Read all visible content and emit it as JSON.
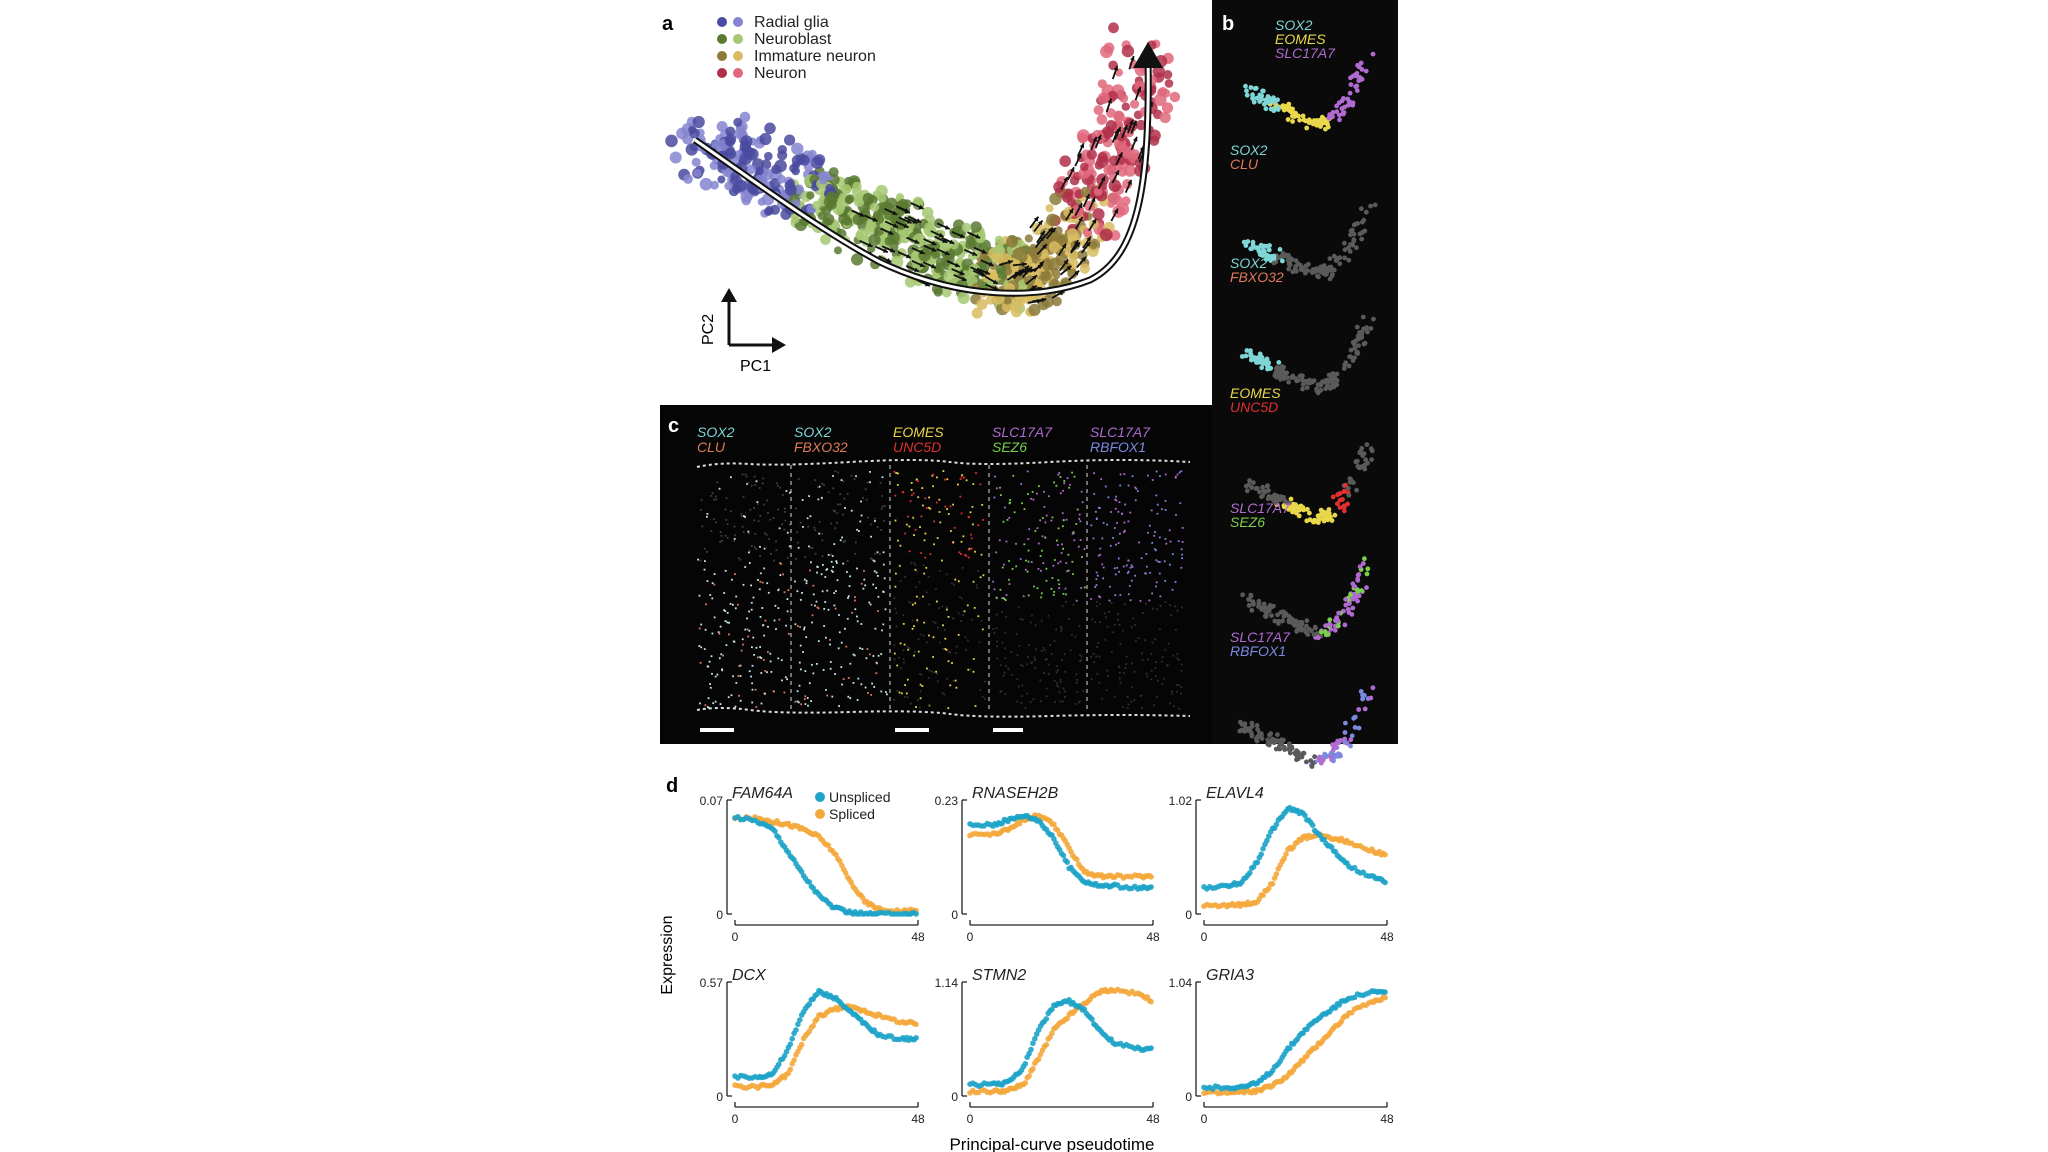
{
  "panel_a": {
    "letter": "a",
    "legend": [
      {
        "label": "Radial glia",
        "colors": [
          "#4a4aa0",
          "#8585d0"
        ]
      },
      {
        "label": "Neuroblast",
        "colors": [
          "#5a7a32",
          "#a6c872"
        ]
      },
      {
        "label": "Immature neuron",
        "colors": [
          "#8c7a3a",
          "#d8bc62"
        ]
      },
      {
        "label": "Neuron",
        "colors": [
          "#b0304a",
          "#e0687c"
        ]
      }
    ],
    "axis_x": "PC1",
    "axis_y": "PC2"
  },
  "panel_b": {
    "letter": "b",
    "groups": [
      {
        "genes": [
          {
            "name": "SOX2",
            "color": "#7fd6d6"
          },
          {
            "name": "EOMES",
            "color": "#e8d84a"
          },
          {
            "name": "SLC17A7",
            "color": "#b06ad0"
          }
        ]
      },
      {
        "genes": [
          {
            "name": "SOX2",
            "color": "#7fd6d6"
          },
          {
            "name": "CLU",
            "color": "#e07a5a"
          }
        ]
      },
      {
        "genes": [
          {
            "name": "SOX2",
            "color": "#7fd6d6"
          },
          {
            "name": "FBXO32",
            "color": "#e07a5a"
          }
        ]
      },
      {
        "genes": [
          {
            "name": "EOMES",
            "color": "#e8d84a"
          },
          {
            "name": "UNC5D",
            "color": "#e03030"
          }
        ]
      },
      {
        "genes": [
          {
            "name": "SLC17A7",
            "color": "#b06ad0"
          },
          {
            "name": "SEZ6",
            "color": "#7ad04a"
          }
        ]
      },
      {
        "genes": [
          {
            "name": "SLC17A7",
            "color": "#b06ad0"
          },
          {
            "name": "RBFOX1",
            "color": "#7a8ae0"
          }
        ]
      }
    ]
  },
  "panel_c": {
    "letter": "c",
    "columns": [
      {
        "genes": [
          {
            "name": "SOX2",
            "color": "#7fd6d6"
          },
          {
            "name": "CLU",
            "color": "#e07a5a"
          }
        ]
      },
      {
        "genes": [
          {
            "name": "SOX2",
            "color": "#7fd6d6"
          },
          {
            "name": "FBXO32",
            "color": "#e07a5a"
          }
        ]
      },
      {
        "genes": [
          {
            "name": "EOMES",
            "color": "#e8d84a"
          },
          {
            "name": "UNC5D",
            "color": "#e03030"
          }
        ]
      },
      {
        "genes": [
          {
            "name": "SLC17A7",
            "color": "#b06ad0"
          },
          {
            "name": "SEZ6",
            "color": "#7ad04a"
          }
        ]
      },
      {
        "genes": [
          {
            "name": "SLC17A7",
            "color": "#b06ad0"
          },
          {
            "name": "RBFOX1",
            "color": "#7a8ae0"
          }
        ]
      }
    ]
  },
  "panel_d": {
    "letter": "d",
    "legend": [
      {
        "label": "Unspliced",
        "color": "#1ea3c8"
      },
      {
        "label": "Spliced",
        "color": "#f4a93c"
      }
    ],
    "ylabel": "Expression",
    "xlabel": "Principal-curve pseudotime",
    "plots": [
      {
        "gene": "FAM64A",
        "ymax": "0.07",
        "ymin": "0",
        "xmin": "0",
        "xmax": "48"
      },
      {
        "gene": "RNASEH2B",
        "ymax": "0.23",
        "ymin": "0",
        "xmin": "0",
        "xmax": "48"
      },
      {
        "gene": "ELAVL4",
        "ymax": "1.02",
        "ymin": "0",
        "xmin": "0",
        "xmax": "48"
      },
      {
        "gene": "DCX",
        "ymax": "0.57",
        "ymin": "0",
        "xmin": "0",
        "xmax": "48"
      },
      {
        "gene": "STMN2",
        "ymax": "1.14",
        "ymin": "0",
        "xmin": "0",
        "xmax": "48"
      },
      {
        "gene": "GRIA3",
        "ymax": "1.04",
        "ymin": "0",
        "xmin": "0",
        "xmax": "48"
      }
    ]
  },
  "chart_data": [
    {
      "type": "line",
      "panel": "d",
      "title": "FAM64A",
      "xlim": [
        0,
        48
      ],
      "ylim": [
        0,
        0.07
      ],
      "x": [
        0,
        6,
        10,
        14,
        18,
        22,
        26,
        30,
        34,
        38,
        44,
        48
      ],
      "series": [
        {
          "name": "Unspliced",
          "values": [
            0.063,
            0.06,
            0.055,
            0.04,
            0.025,
            0.012,
            0.004,
            0.001,
            0,
            0,
            0,
            0
          ]
        },
        {
          "name": "Spliced",
          "values": [
            0.062,
            0.062,
            0.06,
            0.058,
            0.055,
            0.05,
            0.04,
            0.022,
            0.008,
            0.003,
            0.002,
            0.002
          ]
        }
      ]
    },
    {
      "type": "line",
      "panel": "d",
      "title": "RNASEH2B",
      "xlim": [
        0,
        48
      ],
      "ylim": [
        0,
        0.23
      ],
      "x": [
        0,
        6,
        10,
        14,
        18,
        22,
        26,
        30,
        34,
        38,
        44,
        48
      ],
      "series": [
        {
          "name": "Unspliced",
          "values": [
            0.19,
            0.19,
            0.2,
            0.21,
            0.2,
            0.16,
            0.1,
            0.07,
            0.06,
            0.06,
            0.055,
            0.055
          ]
        },
        {
          "name": "Spliced",
          "values": [
            0.17,
            0.17,
            0.18,
            0.2,
            0.21,
            0.19,
            0.14,
            0.09,
            0.08,
            0.08,
            0.08,
            0.08
          ]
        }
      ]
    },
    {
      "type": "line",
      "panel": "d",
      "title": "ELAVL4",
      "xlim": [
        0,
        48
      ],
      "ylim": [
        0,
        1.02
      ],
      "x": [
        0,
        6,
        10,
        14,
        18,
        22,
        26,
        30,
        34,
        38,
        44,
        48
      ],
      "series": [
        {
          "name": "Unspliced",
          "values": [
            0.25,
            0.26,
            0.3,
            0.5,
            0.8,
            1.0,
            0.95,
            0.75,
            0.6,
            0.45,
            0.35,
            0.3
          ]
        },
        {
          "name": "Spliced",
          "values": [
            0.08,
            0.08,
            0.09,
            0.12,
            0.3,
            0.6,
            0.72,
            0.74,
            0.72,
            0.68,
            0.6,
            0.55
          ]
        }
      ]
    },
    {
      "type": "line",
      "panel": "d",
      "title": "DCX",
      "xlim": [
        0,
        48
      ],
      "ylim": [
        0,
        0.57
      ],
      "x": [
        0,
        6,
        10,
        14,
        18,
        22,
        26,
        30,
        34,
        38,
        44,
        48
      ],
      "series": [
        {
          "name": "Unspliced",
          "values": [
            0.1,
            0.1,
            0.12,
            0.25,
            0.45,
            0.55,
            0.52,
            0.45,
            0.38,
            0.32,
            0.3,
            0.3
          ]
        },
        {
          "name": "Spliced",
          "values": [
            0.05,
            0.05,
            0.06,
            0.12,
            0.3,
            0.42,
            0.46,
            0.47,
            0.45,
            0.42,
            0.39,
            0.38
          ]
        }
      ]
    },
    {
      "type": "line",
      "panel": "d",
      "title": "STMN2",
      "xlim": [
        0,
        48
      ],
      "ylim": [
        0,
        1.14
      ],
      "x": [
        0,
        6,
        10,
        14,
        18,
        22,
        26,
        30,
        34,
        38,
        44,
        48
      ],
      "series": [
        {
          "name": "Unspliced",
          "values": [
            0.12,
            0.12,
            0.14,
            0.3,
            0.7,
            0.95,
            1.0,
            0.9,
            0.7,
            0.55,
            0.5,
            0.5
          ]
        },
        {
          "name": "Spliced",
          "values": [
            0.05,
            0.05,
            0.06,
            0.12,
            0.4,
            0.7,
            0.85,
            0.98,
            1.1,
            1.12,
            1.08,
            1.0
          ]
        }
      ]
    },
    {
      "type": "line",
      "panel": "d",
      "title": "GRIA3",
      "xlim": [
        0,
        48
      ],
      "ylim": [
        0,
        1.04
      ],
      "x": [
        0,
        6,
        10,
        14,
        18,
        22,
        26,
        30,
        34,
        38,
        44,
        48
      ],
      "series": [
        {
          "name": "Unspliced",
          "values": [
            0.08,
            0.08,
            0.09,
            0.12,
            0.25,
            0.45,
            0.62,
            0.75,
            0.85,
            0.95,
            1.0,
            1.0
          ]
        },
        {
          "name": "Spliced",
          "values": [
            0.03,
            0.03,
            0.04,
            0.05,
            0.1,
            0.2,
            0.35,
            0.5,
            0.65,
            0.8,
            0.9,
            0.95
          ]
        }
      ]
    }
  ]
}
